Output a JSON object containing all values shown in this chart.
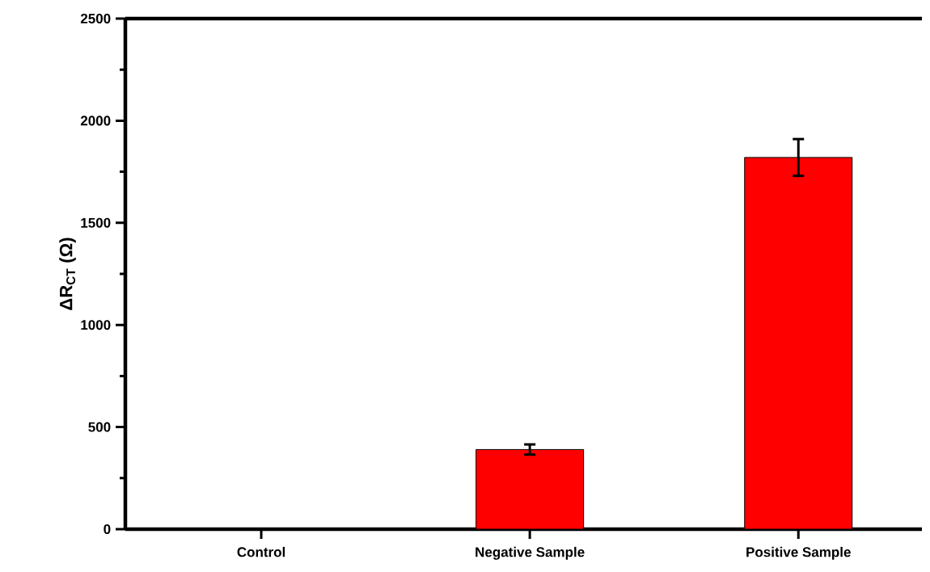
{
  "chart_data": {
    "type": "bar",
    "ylabel": "ΔR$_{CT}$ (Ω)",
    "categories": [
      "Control",
      "Negative Sample",
      "Positive Sample"
    ],
    "values": [
      0,
      390,
      1820
    ],
    "errors": [
      null,
      25,
      90
    ],
    "color": "#ff0000",
    "ylim": [
      0,
      2500
    ],
    "yticks": [
      0,
      500,
      1000,
      1500,
      2000,
      2500
    ],
    "grid": false
  }
}
